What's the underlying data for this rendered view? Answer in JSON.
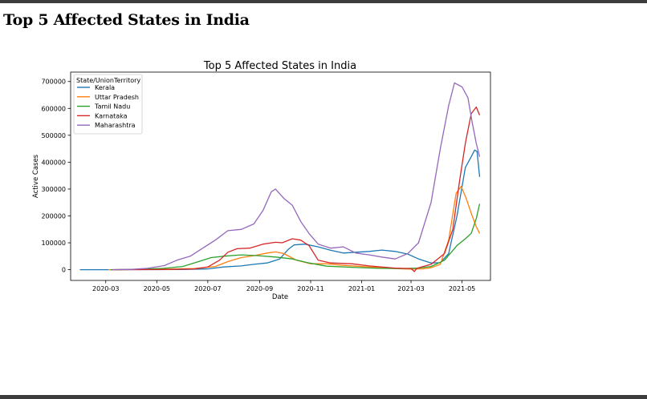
{
  "page": {
    "heading": "Top 5 Affected States in India"
  },
  "chart_data": {
    "type": "line",
    "title": "Top 5 Affected States in India",
    "xlabel": "Date",
    "ylabel": "Active Cases",
    "xlim": [
      "2020-01-19",
      "2021-06-04"
    ],
    "ylim": [
      -40000,
      735000
    ],
    "x_ticks": [
      "2020-03-01",
      "2020-05-01",
      "2020-07-01",
      "2020-09-01",
      "2020-11-01",
      "2021-01-01",
      "2021-03-01",
      "2021-05-01"
    ],
    "x_tick_labels": [
      "2020-03",
      "2020-05",
      "2020-07",
      "2020-09",
      "2020-11",
      "2021-01",
      "2021-03",
      "2021-05"
    ],
    "y_ticks": [
      0,
      100000,
      200000,
      300000,
      400000,
      500000,
      600000,
      700000
    ],
    "y_tick_labels": [
      "0",
      "100000",
      "200000",
      "300000",
      "400000",
      "500000",
      "600000",
      "700000"
    ],
    "grid": false,
    "legend": {
      "title": "State/UnionTerritory",
      "placement": "upper-left"
    },
    "series": [
      {
        "name": "Kerala",
        "color": "#1f77b4",
        "points": [
          [
            "2020-01-30",
            0
          ],
          [
            "2020-03-01",
            0
          ],
          [
            "2020-04-01",
            300
          ],
          [
            "2020-05-01",
            100
          ],
          [
            "2020-06-01",
            800
          ],
          [
            "2020-07-01",
            3000
          ],
          [
            "2020-07-20",
            10000
          ],
          [
            "2020-08-10",
            14000
          ],
          [
            "2020-08-25",
            20000
          ],
          [
            "2020-09-10",
            25000
          ],
          [
            "2020-09-25",
            40000
          ],
          [
            "2020-10-05",
            75000
          ],
          [
            "2020-10-12",
            92000
          ],
          [
            "2020-10-25",
            95000
          ],
          [
            "2020-11-10",
            85000
          ],
          [
            "2020-11-25",
            72000
          ],
          [
            "2020-12-10",
            62000
          ],
          [
            "2020-12-25",
            65000
          ],
          [
            "2021-01-10",
            68000
          ],
          [
            "2021-01-25",
            73000
          ],
          [
            "2021-02-10",
            68000
          ],
          [
            "2021-02-25",
            58000
          ],
          [
            "2021-03-10",
            40000
          ],
          [
            "2021-03-25",
            25000
          ],
          [
            "2021-04-05",
            26000
          ],
          [
            "2021-04-15",
            60000
          ],
          [
            "2021-04-25",
            200000
          ],
          [
            "2021-05-05",
            380000
          ],
          [
            "2021-05-12",
            420000
          ],
          [
            "2021-05-16",
            445000
          ],
          [
            "2021-05-19",
            440000
          ],
          [
            "2021-05-22",
            345000
          ]
        ]
      },
      {
        "name": "Uttar Pradesh",
        "color": "#ff7f0e",
        "points": [
          [
            "2020-03-04",
            0
          ],
          [
            "2020-04-15",
            1000
          ],
          [
            "2020-05-15",
            2000
          ],
          [
            "2020-06-15",
            4000
          ],
          [
            "2020-07-10",
            12000
          ],
          [
            "2020-07-25",
            30000
          ],
          [
            "2020-08-10",
            45000
          ],
          [
            "2020-08-25",
            52000
          ],
          [
            "2020-09-10",
            62000
          ],
          [
            "2020-09-20",
            66000
          ],
          [
            "2020-09-30",
            60000
          ],
          [
            "2020-10-15",
            35000
          ],
          [
            "2020-11-01",
            22000
          ],
          [
            "2020-11-20",
            22000
          ],
          [
            "2020-12-10",
            16000
          ],
          [
            "2021-01-01",
            12000
          ],
          [
            "2021-01-20",
            8000
          ],
          [
            "2021-02-10",
            4000
          ],
          [
            "2021-03-01",
            2000
          ],
          [
            "2021-03-15",
            3000
          ],
          [
            "2021-03-25",
            7000
          ],
          [
            "2021-04-05",
            20000
          ],
          [
            "2021-04-15",
            110000
          ],
          [
            "2021-04-24",
            285000
          ],
          [
            "2021-04-30",
            310000
          ],
          [
            "2021-05-06",
            265000
          ],
          [
            "2021-05-12",
            210000
          ],
          [
            "2021-05-18",
            160000
          ],
          [
            "2021-05-22",
            135000
          ]
        ]
      },
      {
        "name": "Tamil Nadu",
        "color": "#2ca02c",
        "points": [
          [
            "2020-03-07",
            0
          ],
          [
            "2020-04-10",
            1000
          ],
          [
            "2020-05-10",
            5000
          ],
          [
            "2020-06-01",
            12000
          ],
          [
            "2020-06-20",
            30000
          ],
          [
            "2020-07-05",
            45000
          ],
          [
            "2020-07-20",
            50000
          ],
          [
            "2020-08-10",
            55000
          ],
          [
            "2020-08-30",
            52000
          ],
          [
            "2020-09-20",
            47000
          ],
          [
            "2020-10-10",
            40000
          ],
          [
            "2020-10-30",
            25000
          ],
          [
            "2020-11-20",
            13000
          ],
          [
            "2020-12-20",
            9000
          ],
          [
            "2021-01-20",
            5000
          ],
          [
            "2021-02-20",
            4000
          ],
          [
            "2021-03-10",
            6000
          ],
          [
            "2021-03-25",
            12000
          ],
          [
            "2021-04-10",
            35000
          ],
          [
            "2021-04-25",
            90000
          ],
          [
            "2021-05-05",
            115000
          ],
          [
            "2021-05-12",
            135000
          ],
          [
            "2021-05-18",
            190000
          ],
          [
            "2021-05-22",
            245000
          ]
        ]
      },
      {
        "name": "Karnataka",
        "color": "#d62728",
        "points": [
          [
            "2020-03-09",
            0
          ],
          [
            "2020-04-15",
            300
          ],
          [
            "2020-05-15",
            800
          ],
          [
            "2020-06-15",
            3000
          ],
          [
            "2020-07-01",
            10000
          ],
          [
            "2020-07-15",
            35000
          ],
          [
            "2020-07-25",
            65000
          ],
          [
            "2020-08-05",
            78000
          ],
          [
            "2020-08-20",
            80000
          ],
          [
            "2020-09-05",
            95000
          ],
          [
            "2020-09-20",
            102000
          ],
          [
            "2020-09-28",
            100000
          ],
          [
            "2020-10-10",
            115000
          ],
          [
            "2020-10-20",
            110000
          ],
          [
            "2020-10-30",
            90000
          ],
          [
            "2020-11-10",
            35000
          ],
          [
            "2020-11-25",
            25000
          ],
          [
            "2020-12-20",
            22000
          ],
          [
            "2021-01-10",
            14000
          ],
          [
            "2021-02-10",
            6000
          ],
          [
            "2021-03-01",
            4000
          ],
          [
            "2021-03-05",
            -7000
          ],
          [
            "2021-03-08",
            5000
          ],
          [
            "2021-03-25",
            20000
          ],
          [
            "2021-04-10",
            60000
          ],
          [
            "2021-04-20",
            150000
          ],
          [
            "2021-04-28",
            330000
          ],
          [
            "2021-05-05",
            470000
          ],
          [
            "2021-05-12",
            580000
          ],
          [
            "2021-05-18",
            605000
          ],
          [
            "2021-05-22",
            575000
          ]
        ]
      },
      {
        "name": "Maharashtra",
        "color": "#9467bd",
        "points": [
          [
            "2020-03-09",
            0
          ],
          [
            "2020-04-01",
            1000
          ],
          [
            "2020-04-20",
            5000
          ],
          [
            "2020-05-10",
            15000
          ],
          [
            "2020-05-25",
            35000
          ],
          [
            "2020-06-10",
            50000
          ],
          [
            "2020-06-25",
            80000
          ],
          [
            "2020-07-10",
            110000
          ],
          [
            "2020-07-25",
            145000
          ],
          [
            "2020-08-10",
            150000
          ],
          [
            "2020-08-25",
            170000
          ],
          [
            "2020-09-05",
            220000
          ],
          [
            "2020-09-15",
            290000
          ],
          [
            "2020-09-20",
            300000
          ],
          [
            "2020-09-30",
            265000
          ],
          [
            "2020-10-10",
            240000
          ],
          [
            "2020-10-20",
            180000
          ],
          [
            "2020-10-30",
            135000
          ],
          [
            "2020-11-10",
            95000
          ],
          [
            "2020-11-25",
            80000
          ],
          [
            "2020-12-10",
            85000
          ],
          [
            "2020-12-25",
            62000
          ],
          [
            "2021-01-10",
            55000
          ],
          [
            "2021-01-25",
            47000
          ],
          [
            "2021-02-10",
            40000
          ],
          [
            "2021-02-25",
            60000
          ],
          [
            "2021-03-10",
            100000
          ],
          [
            "2021-03-25",
            250000
          ],
          [
            "2021-04-05",
            450000
          ],
          [
            "2021-04-15",
            610000
          ],
          [
            "2021-04-22",
            695000
          ],
          [
            "2021-05-01",
            680000
          ],
          [
            "2021-05-08",
            640000
          ],
          [
            "2021-05-13",
            550000
          ],
          [
            "2021-05-18",
            470000
          ],
          [
            "2021-05-22",
            420000
          ]
        ]
      }
    ]
  }
}
